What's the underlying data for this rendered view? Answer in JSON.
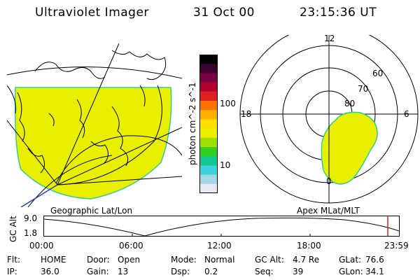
{
  "header": {
    "instrument": "Ultraviolet Imager",
    "date": "31 Oct 00",
    "time": "23:15:36 UT"
  },
  "geo_panel": {
    "caption": "Geographic Lat/Lon"
  },
  "polar_panel": {
    "caption": "Apex MLat/MLT",
    "mlt_labels": {
      "top": "12",
      "left": "18",
      "right": "6",
      "bottom": "0"
    },
    "lat_labels": [
      "60",
      "70",
      "80"
    ]
  },
  "colorbar": {
    "unit_label": "photon cm^-2 s^-1",
    "ticks": [
      "100",
      "10"
    ],
    "colors": [
      "#000000",
      "#3a0030",
      "#7a0040",
      "#b00030",
      "#e02020",
      "#ff7000",
      "#ffb000",
      "#ffe000",
      "#e8f000",
      "#a0e000",
      "#30d020",
      "#10c890",
      "#40d0e0",
      "#a0d8e8",
      "#e8e8f0"
    ]
  },
  "altitude_plot": {
    "y_label": "GC Alt",
    "y_ticks": [
      "9.0",
      "1.8"
    ],
    "x_ticks": [
      "00:00",
      "06:00",
      "12:00",
      "18:00",
      "23:59"
    ],
    "marker_color": "#d02020"
  },
  "status": {
    "row1": [
      {
        "label": "Flt:",
        "value": "HOME"
      },
      {
        "label": "Door:",
        "value": "Open"
      },
      {
        "label": "Mode:",
        "value": "Normal"
      },
      {
        "label": "GC Alt:",
        "value": "4.7 Re"
      },
      {
        "label": "GLat:",
        "value": "76.6"
      }
    ],
    "row2": [
      {
        "label": "IP:",
        "value": "36.0"
      },
      {
        "label": "Gain:",
        "value": "13"
      },
      {
        "label": "Dsp:",
        "value": "0.2"
      },
      {
        "label": "Seq:",
        "value": "39"
      },
      {
        "label": "GLon:",
        "value": "34.1"
      }
    ]
  },
  "colors": {
    "aurora_fill": "#e8f000",
    "aurora_edge": "#30d090"
  }
}
